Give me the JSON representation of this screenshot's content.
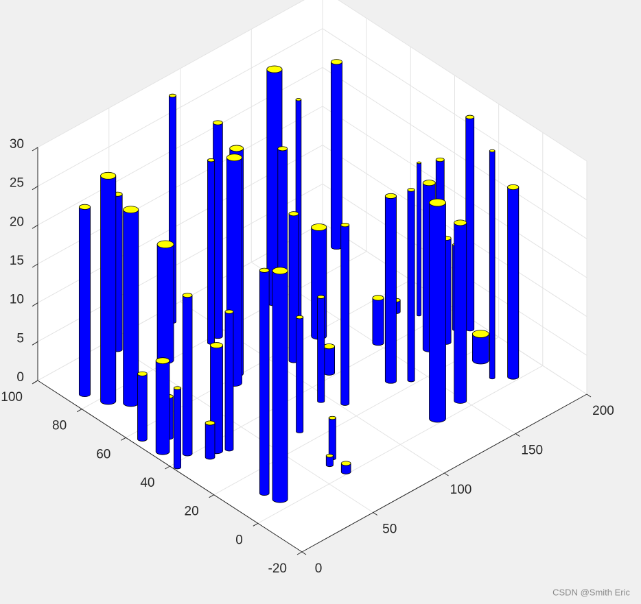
{
  "chart_data": {
    "type": "cylinder3d",
    "x": [
      9.8,
      14.7,
      48.3,
      22.1,
      5.4,
      60.3,
      5.8,
      85.4,
      2.2,
      16.4,
      13.9,
      20.5,
      26.6,
      94,
      87.7,
      79.3,
      73.1,
      32.4,
      135.3,
      20,
      22.5,
      114.7,
      129,
      108.6,
      69.5,
      132.5,
      95.3,
      114.9,
      191.3,
      102.9,
      66.2,
      61.2,
      63.4,
      150.9,
      133.5,
      175.9,
      141.6,
      182.7,
      166.6,
      129.2,
      174.3,
      177.1,
      188,
      148.3,
      193.7,
      179.6,
      173.8,
      182.3
    ],
    "y": [
      85,
      77.5,
      95,
      72,
      56,
      81,
      47,
      94,
      38,
      51,
      41,
      35,
      36,
      79,
      78,
      61,
      58,
      34,
      80,
      10,
      4.5,
      63,
      65,
      54,
      26,
      58,
      33,
      42,
      88,
      27,
      9,
      7,
      1,
      43,
      26,
      51,
      22,
      45,
      30,
      2,
      30,
      29,
      32,
      4,
      29,
      15,
      6,
      2
    ],
    "values": [
      24.1,
      29,
      20,
      24.9,
      8.4,
      14.9,
      11.7,
      29.1,
      10.2,
      5.3,
      20.4,
      4.4,
      13.6,
      27.5,
      23.5,
      29,
      29,
      17.7,
      30,
      28.7,
      29.4,
      25,
      29.5,
      18.9,
      14.7,
      14,
      13.4,
      3.4,
      23.8,
      23,
      5.2,
      1.2,
      1.1,
      5.8,
      23.8,
      1.5,
      24.5,
      19.6,
      21.4,
      27.8,
      23.6,
      13.4,
      10.9,
      22.9,
      27.3,
      3.4,
      29.2,
      24.4
    ],
    "radius": [
      2.7,
      3.7,
      2.3,
      3.7,
      2.3,
      4,
      3.3,
      1.7,
      1.7,
      2,
      2.3,
      2.3,
      3,
      2.3,
      1.7,
      3.3,
      3.7,
      2,
      3.7,
      2.3,
      3.7,
      2.3,
      1.3,
      2.3,
      1.7,
      3.7,
      1.7,
      2.7,
      2.7,
      2,
      1.7,
      1.7,
      2.3,
      2.7,
      2.7,
      2,
      1.7,
      1,
      3,
      4,
      2,
      2.3,
      1.3,
      3,
      2,
      4,
      1.3,
      2.7
    ],
    "color": "#0000ff",
    "top_color": "#ffff00",
    "xlim": [
      0,
      200
    ],
    "xticks": [
      0,
      50,
      100,
      150,
      200
    ],
    "ylim": [
      -20,
      100
    ],
    "yticks": [
      -20,
      0,
      20,
      40,
      60,
      80,
      100
    ],
    "zlim": [
      0,
      30
    ],
    "zticks": [
      0,
      5,
      10,
      15,
      20,
      25,
      30
    ],
    "grid": true,
    "watermark": "CSDN @Smith Eric"
  }
}
